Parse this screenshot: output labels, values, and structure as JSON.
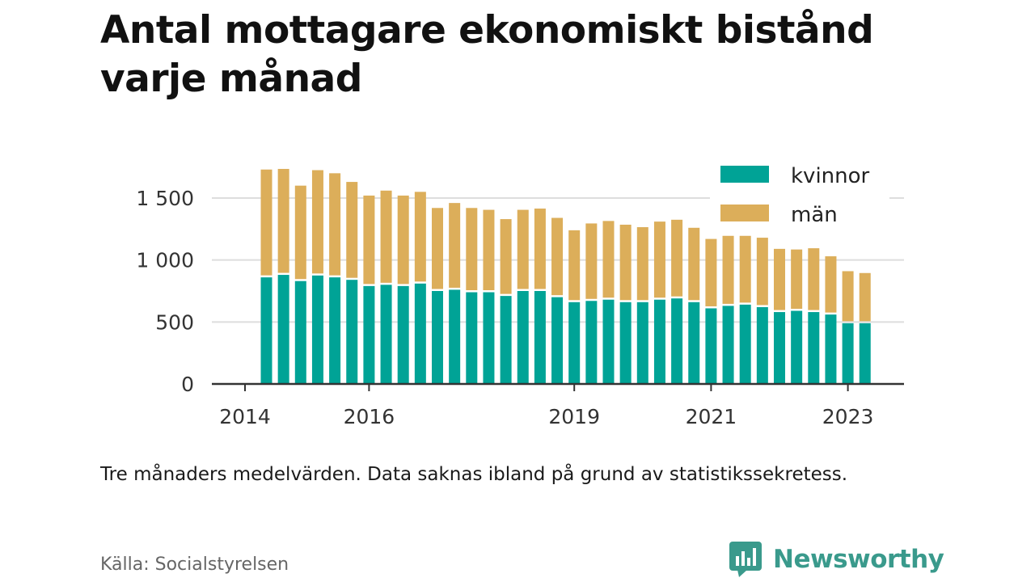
{
  "title": "Antal mottagare ekonomiskt bistånd varje månad",
  "note": "Tre månaders medelvärden. Data saknas ibland på grund av statistikssekretess.",
  "source": "Källa: Socialstyrelsen",
  "brand": "Newsworthy",
  "colors": {
    "kvinnor": "#00a396",
    "man": "#dcae5a",
    "brand": "#3a9a8c"
  },
  "chart_data": {
    "type": "bar",
    "stacked": true,
    "ylim": [
      0,
      1800
    ],
    "yticks": [
      0,
      500,
      1000,
      1500
    ],
    "ytick_labels": [
      "0",
      "500",
      "1 000",
      "1 500"
    ],
    "xtick_labels": [
      {
        "label": "2014",
        "index": -1
      },
      {
        "label": "2016",
        "index": 6
      },
      {
        "label": "2019",
        "index": 18
      },
      {
        "label": "2021",
        "index": 26
      },
      {
        "label": "2023",
        "index": 34
      }
    ],
    "legend_position": "top-right",
    "grid": true,
    "series": [
      {
        "name": "kvinnor",
        "values": [
          860,
          880,
          830,
          875,
          860,
          840,
          790,
          800,
          790,
          810,
          750,
          760,
          740,
          740,
          710,
          750,
          750,
          700,
          660,
          670,
          680,
          660,
          660,
          680,
          690,
          660,
          610,
          630,
          640,
          620,
          580,
          590,
          580,
          560,
          490,
          490
        ]
      },
      {
        "name": "män",
        "values": [
          870,
          855,
          770,
          850,
          840,
          790,
          730,
          760,
          730,
          740,
          670,
          700,
          680,
          665,
          620,
          655,
          665,
          640,
          580,
          625,
          635,
          625,
          605,
          630,
          635,
          600,
          560,
          565,
          555,
          560,
          510,
          495,
          515,
          470,
          420,
          405
        ]
      }
    ]
  }
}
